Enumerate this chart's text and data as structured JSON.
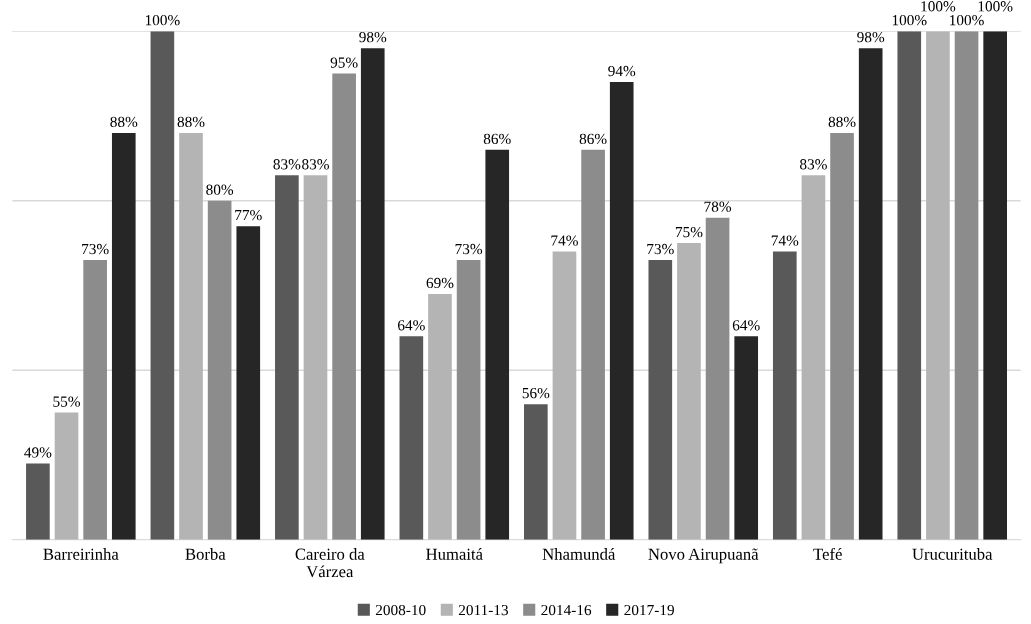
{
  "chart_data": {
    "type": "bar",
    "categories": [
      "Barreirinha",
      "Borba",
      "Careiro da Várzea",
      "Humaitá",
      "Nhamundá",
      "Novo Airupuanã",
      "Tefé",
      "Urucurituba"
    ],
    "series": [
      {
        "name": "2008-10",
        "color": "#595959",
        "values": [
          49,
          100,
          83,
          64,
          56,
          73,
          74,
          100
        ],
        "value_labels": [
          "49%",
          "100%",
          "83%",
          "64%",
          "56%",
          "73%",
          "74%",
          "100%"
        ]
      },
      {
        "name": "2011-13",
        "color": "#b4b4b4",
        "values": [
          55,
          88,
          83,
          69,
          74,
          75,
          83,
          100
        ],
        "value_labels": [
          "55%",
          "88%",
          "83%",
          "69%",
          "74%",
          "75%",
          "83%",
          "100%"
        ]
      },
      {
        "name": "2014-16",
        "color": "#8c8c8c",
        "values": [
          73,
          80,
          95,
          73,
          86,
          78,
          88,
          100
        ],
        "value_labels": [
          "73%",
          "80%",
          "95%",
          "73%",
          "86%",
          "78%",
          "88%",
          "100%"
        ]
      },
      {
        "name": "2017-19",
        "color": "#262626",
        "values": [
          88,
          77,
          98,
          86,
          94,
          64,
          98,
          100
        ],
        "value_labels": [
          "88%",
          "77%",
          "98%",
          "86%",
          "94%",
          "64%",
          "98%",
          "100%"
        ]
      }
    ],
    "ylim": [
      40,
      100
    ],
    "yticks": [
      {
        "value": 40,
        "label": null
      },
      {
        "value": 60,
        "label": null
      },
      {
        "value": 80,
        "label": null
      },
      {
        "value": 100,
        "label": null
      }
    ],
    "tick_labels": "x",
    "grid": "y",
    "legend": "bottom"
  }
}
